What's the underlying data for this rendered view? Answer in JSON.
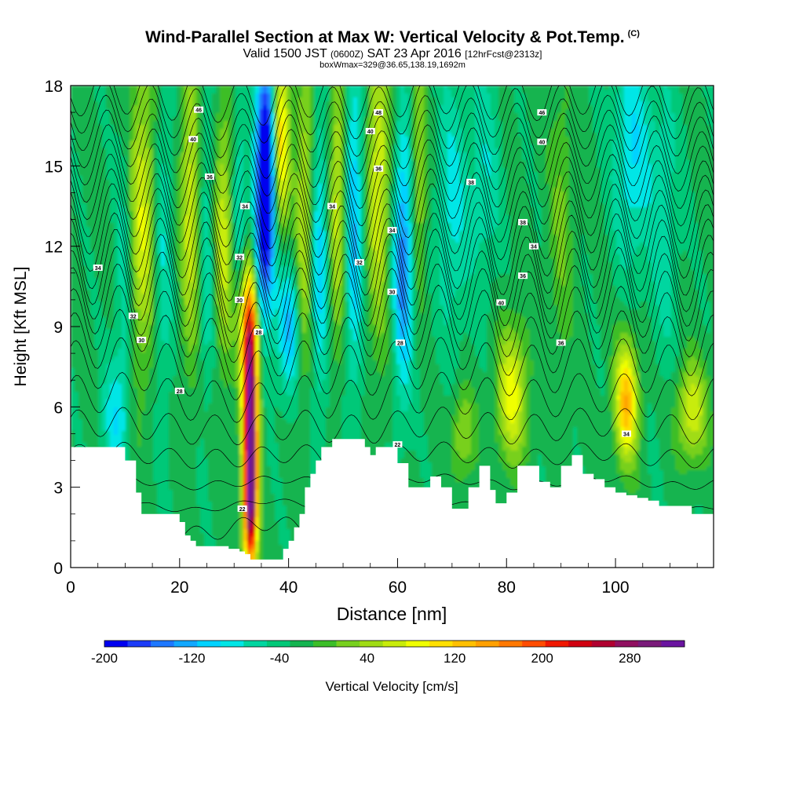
{
  "header": {
    "title": "Wind-Parallel Section at Max W: Vertical Velocity & Pot.Temp.",
    "title_mark": "(C)",
    "valid_prefix": "Valid 1500 JST",
    "valid_utc": "(0600Z)",
    "valid_date": "SAT 23 Apr 2016",
    "forecast": "[12hrFcst@2313z]",
    "box_info": "boxWmax=329@36.65,138.19,1692m"
  },
  "colorbar": {
    "label": "Vertical Velocity [cm/s]",
    "tick_labels": [
      "-200",
      "-120",
      "-40",
      "40",
      "120",
      "200",
      "280"
    ],
    "colors": [
      "#0000f0",
      "#1c3cf8",
      "#1e78ff",
      "#12a8ff",
      "#00d2ff",
      "#00e6e6",
      "#00d6a0",
      "#00c878",
      "#14b450",
      "#3cbe28",
      "#78d01e",
      "#a0dc14",
      "#c8ec0a",
      "#f0ff00",
      "#ffe000",
      "#ffc000",
      "#ffa000",
      "#ff7800",
      "#ff4c00",
      "#f01800",
      "#d00010",
      "#b00030",
      "#901060",
      "#7a1a7a",
      "#6a14a0"
    ]
  },
  "chart_data": {
    "type": "contour",
    "title": "Wind-Parallel Section at Max W: Vertical Velocity & Pot.Temp.",
    "xlabel": "Distance [nm]",
    "ylabel": "Height [Kft MSL]",
    "xlim": [
      0,
      118
    ],
    "ylim": [
      0,
      18
    ],
    "x_ticks": [
      0,
      20,
      40,
      60,
      80,
      100
    ],
    "y_ticks": [
      0,
      3,
      6,
      9,
      12,
      15,
      18
    ],
    "colorbar_range": [
      -200,
      330
    ],
    "max_vertical_velocity_cm_s": 329,
    "max_location": {
      "lat": 36.65,
      "lon": 138.19,
      "height_m": 1692
    },
    "terrain_kft": {
      "x": [
        0,
        1,
        10,
        12,
        13,
        18,
        20,
        21,
        22,
        23,
        24,
        28,
        29,
        30,
        31,
        32,
        33,
        34,
        36,
        38,
        39,
        40,
        41,
        42,
        43,
        44,
        45,
        46,
        48,
        49,
        50,
        52,
        54,
        55,
        56,
        58,
        60,
        61,
        62,
        64,
        66,
        67,
        68,
        70,
        72,
        73,
        75,
        76,
        77,
        78,
        80,
        82,
        84,
        86,
        88,
        90,
        92,
        94,
        96,
        98,
        100,
        102,
        104,
        106,
        108,
        110,
        112,
        114,
        116,
        118
      ],
      "y": [
        4.5,
        4.5,
        4.0,
        2.8,
        2.0,
        2.0,
        1.7,
        1.2,
        1.0,
        0.8,
        0.8,
        0.8,
        0.7,
        0.7,
        0.6,
        0.5,
        0.3,
        0.3,
        0.3,
        0.3,
        0.7,
        1.0,
        1.5,
        2.0,
        3.0,
        3.5,
        4.0,
        4.5,
        4.8,
        4.8,
        4.8,
        4.8,
        4.5,
        4.2,
        4.5,
        4.5,
        3.9,
        3.9,
        3.0,
        3.0,
        3.4,
        3.4,
        3.0,
        2.2,
        2.2,
        3.0,
        3.8,
        3.8,
        2.9,
        2.4,
        2.8,
        3.8,
        3.8,
        3.2,
        3.0,
        3.8,
        4.2,
        3.5,
        3.3,
        3.0,
        2.8,
        2.7,
        2.6,
        2.5,
        2.3,
        2.3,
        2.3,
        2.0,
        2.0,
        2.0
      ]
    },
    "w_features": [
      {
        "x": 33,
        "y": 5.5,
        "sx": 1.0,
        "sy": 3.2,
        "amp": 329
      },
      {
        "x": 33,
        "y": 2.0,
        "sx": 0.8,
        "sy": 1.5,
        "amp": 170
      },
      {
        "x": 32.5,
        "y": 9.2,
        "sx": 1.5,
        "sy": 1.8,
        "amp": 140
      },
      {
        "x": 36,
        "y": 15.5,
        "sx": 1.3,
        "sy": 2.8,
        "amp": -200
      },
      {
        "x": 35,
        "y": 11.5,
        "sx": 1.5,
        "sy": 2.5,
        "amp": -120
      },
      {
        "x": 38.5,
        "y": 16.0,
        "sx": 1.2,
        "sy": 2.5,
        "amp": 150
      },
      {
        "x": 13,
        "y": 13.0,
        "sx": 1.8,
        "sy": 4.0,
        "amp": 100
      },
      {
        "x": 22,
        "y": 13.5,
        "sx": 1.3,
        "sy": 4.0,
        "amp": 95
      },
      {
        "x": 28,
        "y": 12.5,
        "sx": 1.3,
        "sy": 3.5,
        "amp": 90
      },
      {
        "x": 43,
        "y": 13.0,
        "sx": 1.2,
        "sy": 4.0,
        "amp": 90
      },
      {
        "x": 49,
        "y": 14.0,
        "sx": 1.0,
        "sy": 4.0,
        "amp": 90
      },
      {
        "x": 56.5,
        "y": 14.5,
        "sx": 1.5,
        "sy": 4.0,
        "amp": 100
      },
      {
        "x": 64,
        "y": 15.0,
        "sx": 1.0,
        "sy": 3.0,
        "amp": 70
      },
      {
        "x": 81,
        "y": 6.5,
        "sx": 2.0,
        "sy": 1.8,
        "amp": 110
      },
      {
        "x": 102,
        "y": 6.2,
        "sx": 1.5,
        "sy": 1.6,
        "amp": 160
      },
      {
        "x": 114,
        "y": 5.8,
        "sx": 2.0,
        "sy": 1.3,
        "amp": 100
      },
      {
        "x": 72,
        "y": 5.0,
        "sx": 1.5,
        "sy": 1.2,
        "amp": 65
      },
      {
        "x": 8,
        "y": 5.5,
        "sx": 1.6,
        "sy": 1.5,
        "amp": -60
      },
      {
        "x": 10,
        "y": 11.0,
        "sx": 1.2,
        "sy": 4.0,
        "amp": -50
      },
      {
        "x": 17,
        "y": 12.0,
        "sx": 1.2,
        "sy": 4.5,
        "amp": -50
      },
      {
        "x": 25,
        "y": 12.0,
        "sx": 1.2,
        "sy": 4.0,
        "amp": -50
      },
      {
        "x": 31,
        "y": 12.5,
        "sx": 1.0,
        "sy": 3.5,
        "amp": -60
      },
      {
        "x": 45.5,
        "y": 11.5,
        "sx": 1.2,
        "sy": 4.0,
        "amp": -80
      },
      {
        "x": 40,
        "y": 9.0,
        "sx": 1.5,
        "sy": 1.8,
        "amp": -90
      },
      {
        "x": 52,
        "y": 13.0,
        "sx": 1.2,
        "sy": 4.5,
        "amp": -90
      },
      {
        "x": 61,
        "y": 11.5,
        "sx": 1.3,
        "sy": 3.5,
        "amp": -120
      },
      {
        "x": 70,
        "y": 13.5,
        "sx": 2.0,
        "sy": 3.5,
        "amp": -55
      },
      {
        "x": 76,
        "y": 14.5,
        "sx": 2.0,
        "sy": 3.0,
        "amp": -45
      },
      {
        "x": 90,
        "y": 13.0,
        "sx": 1.5,
        "sy": 4.0,
        "amp": 40
      },
      {
        "x": 103,
        "y": 15.5,
        "sx": 2.5,
        "sy": 3.0,
        "amp": -70
      },
      {
        "x": 109,
        "y": 13.0,
        "sx": 2.0,
        "sy": 4.0,
        "amp": -40
      }
    ],
    "theta_lines_kft": [
      {
        "base": 1.4,
        "amp": -0.3
      },
      {
        "base": 2.3,
        "amp": -0.1
      },
      {
        "base": 3.2,
        "amp": 0.15
      },
      {
        "base": 4.2,
        "amp": 0.35
      },
      {
        "base": 5.3,
        "amp": 0.55
      },
      {
        "base": 6.4,
        "amp": 0.75
      },
      {
        "base": 7.5,
        "amp": 0.95
      },
      {
        "base": 8.4,
        "amp": 1.1
      },
      {
        "base": 9.2,
        "amp": 1.2
      },
      {
        "base": 9.9,
        "amp": 1.3
      },
      {
        "base": 10.5,
        "amp": 1.35
      },
      {
        "base": 11.1,
        "amp": 1.4
      },
      {
        "base": 11.7,
        "amp": 1.4
      },
      {
        "base": 12.3,
        "amp": 1.35
      },
      {
        "base": 12.9,
        "amp": 1.3
      },
      {
        "base": 13.5,
        "amp": 1.25
      },
      {
        "base": 14.1,
        "amp": 1.2
      },
      {
        "base": 14.7,
        "amp": 1.15
      },
      {
        "base": 15.3,
        "amp": 1.1
      },
      {
        "base": 15.9,
        "amp": 1.05
      },
      {
        "base": 16.5,
        "amp": 1.0
      },
      {
        "base": 17.1,
        "amp": 0.95
      },
      {
        "base": 17.7,
        "amp": 0.9
      }
    ],
    "contour_labels": [
      {
        "x": 5,
        "y": 11.2,
        "text": "34"
      },
      {
        "x": 11.5,
        "y": 9.4,
        "text": "32"
      },
      {
        "x": 13,
        "y": 8.5,
        "text": "30"
      },
      {
        "x": 20,
        "y": 6.6,
        "text": "28"
      },
      {
        "x": 23.5,
        "y": 17.1,
        "text": "46"
      },
      {
        "x": 22.5,
        "y": 16.0,
        "text": "40"
      },
      {
        "x": 25.5,
        "y": 14.6,
        "text": "36"
      },
      {
        "x": 32,
        "y": 13.5,
        "text": "34"
      },
      {
        "x": 31,
        "y": 11.6,
        "text": "32"
      },
      {
        "x": 31,
        "y": 10.0,
        "text": "30"
      },
      {
        "x": 34.5,
        "y": 8.8,
        "text": "28"
      },
      {
        "x": 48,
        "y": 13.5,
        "text": "34"
      },
      {
        "x": 53,
        "y": 11.4,
        "text": "32"
      },
      {
        "x": 55,
        "y": 16.3,
        "text": "40"
      },
      {
        "x": 56.5,
        "y": 17.0,
        "text": "48"
      },
      {
        "x": 56.5,
        "y": 14.9,
        "text": "36"
      },
      {
        "x": 59,
        "y": 12.6,
        "text": "34"
      },
      {
        "x": 59,
        "y": 10.3,
        "text": "30"
      },
      {
        "x": 60.5,
        "y": 8.4,
        "text": "28"
      },
      {
        "x": 60,
        "y": 4.6,
        "text": "22"
      },
      {
        "x": 31.5,
        "y": 2.2,
        "text": "22"
      },
      {
        "x": 73.5,
        "y": 14.4,
        "text": "38"
      },
      {
        "x": 83,
        "y": 12.9,
        "text": "38"
      },
      {
        "x": 85,
        "y": 12.0,
        "text": "34"
      },
      {
        "x": 83,
        "y": 10.9,
        "text": "36"
      },
      {
        "x": 79,
        "y": 9.9,
        "text": "40"
      },
      {
        "x": 86.5,
        "y": 17.0,
        "text": "46"
      },
      {
        "x": 86.5,
        "y": 15.9,
        "text": "40"
      },
      {
        "x": 90,
        "y": 8.4,
        "text": "36"
      },
      {
        "x": 102,
        "y": 5.0,
        "text": "34"
      }
    ]
  }
}
